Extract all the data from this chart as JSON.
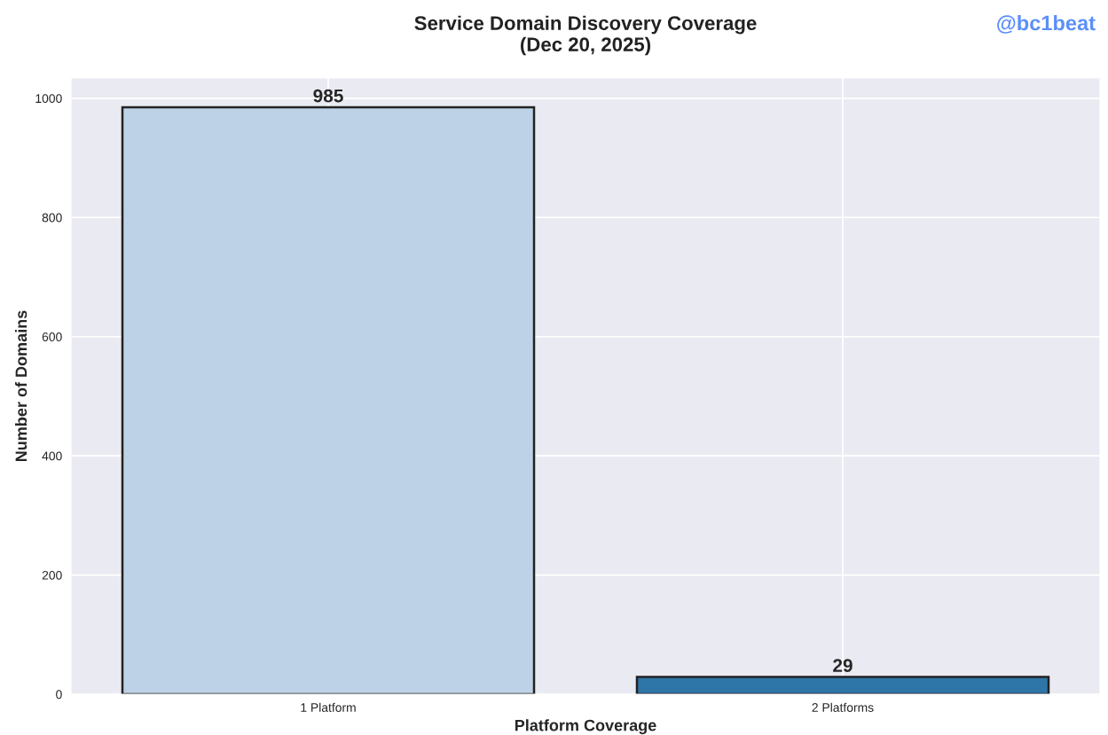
{
  "chart_data": {
    "type": "bar",
    "title": "Service Domain Discovery Coverage\n(Dec 20, 2025)",
    "xlabel": "Platform Coverage",
    "ylabel": "Number of Domains",
    "categories": [
      "1 Platform",
      "2 Platforms"
    ],
    "values": [
      985,
      29
    ],
    "colors": [
      "#bdd2e6",
      "#2e75a8"
    ],
    "ylim": [
      0,
      1034
    ],
    "yticks": [
      0,
      200,
      400,
      600,
      800,
      1000
    ],
    "grid": true,
    "data_labels": true,
    "annotations": [
      "@bc1beat"
    ]
  }
}
